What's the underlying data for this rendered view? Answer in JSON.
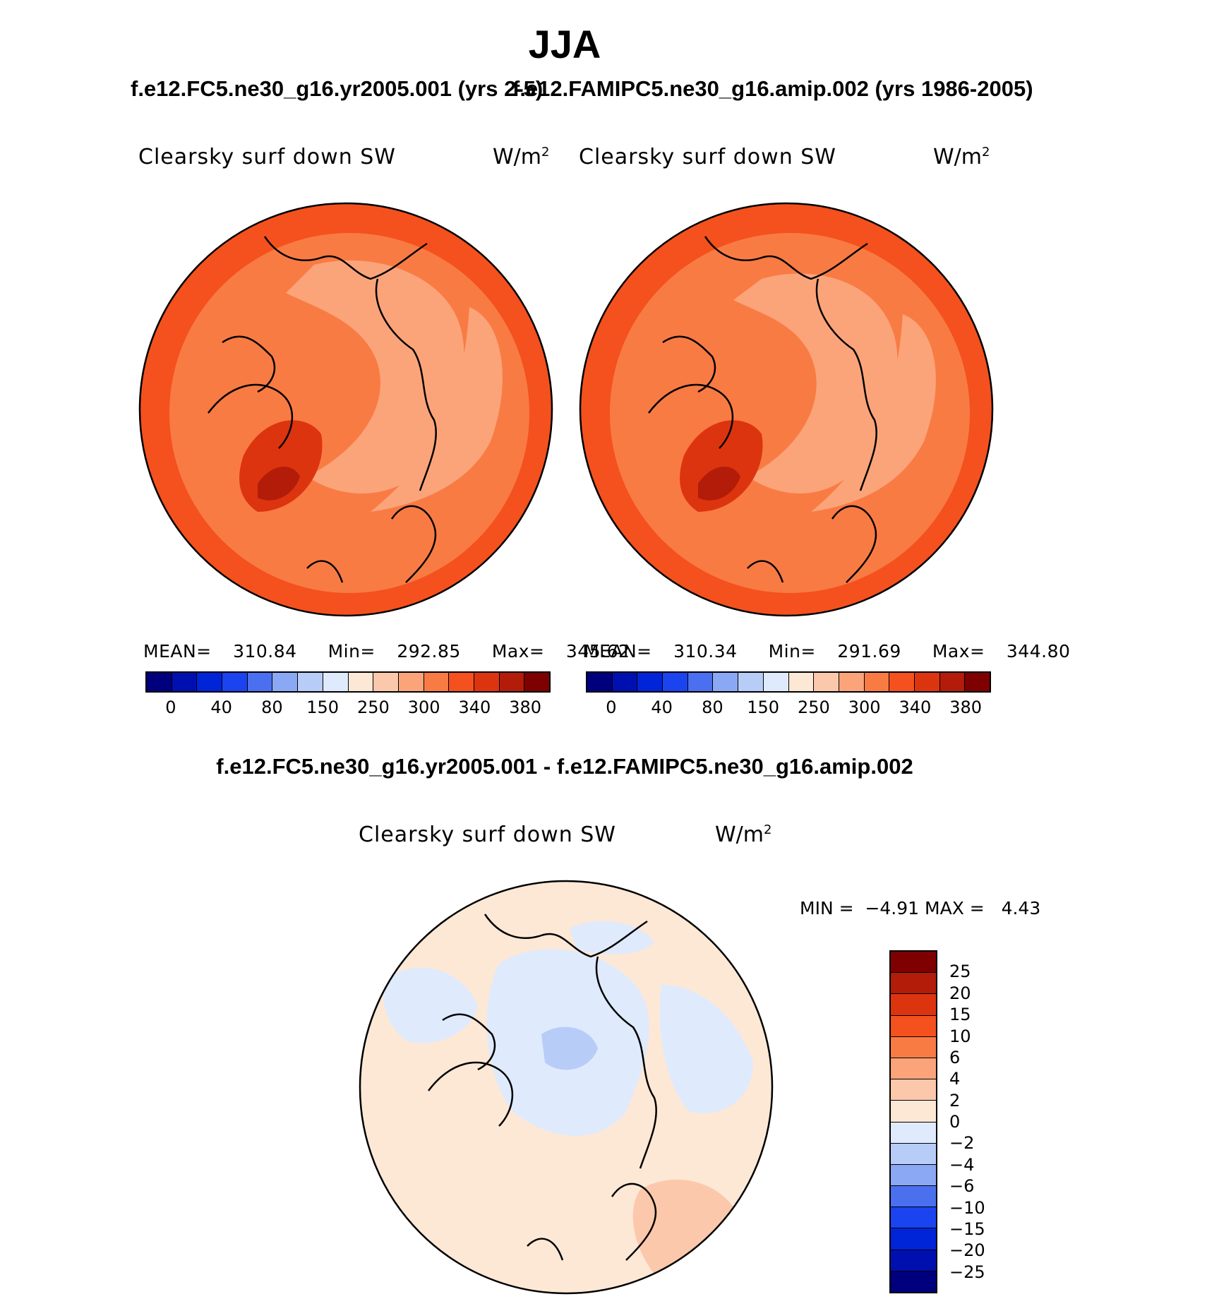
{
  "season": "JJA",
  "panels": [
    {
      "case_title": "f.e12.FC5.ne30_g16.yr2005.001 (yrs 2-5)",
      "variable": "Clearsky surf down SW",
      "units": "W/m",
      "units_exp": "2",
      "stats": {
        "mean_label": "MEAN=",
        "mean": "310.84",
        "min_label": "Min=",
        "min": "292.85",
        "max_label": "Max=",
        "max": "345.62"
      }
    },
    {
      "case_title": "f.e12.FAMIPC5.ne30_g16.amip.002 (yrs 1986-2005)",
      "variable": "Clearsky surf down SW",
      "units": "W/m",
      "units_exp": "2",
      "stats": {
        "mean_label": "MEAN=",
        "mean": "310.34",
        "min_label": "Min=",
        "min": "291.69",
        "max_label": "Max=",
        "max": "344.80"
      }
    }
  ],
  "colorbar_abs": {
    "colors": [
      "#00007f",
      "#0010b0",
      "#0024d8",
      "#1a44f0",
      "#4a70f0",
      "#8aa8f4",
      "#b8ccf8",
      "#dfeafc",
      "#fde8d6",
      "#fcc8ac",
      "#fba47a",
      "#f97b44",
      "#f4511e",
      "#dd3410",
      "#b31c08",
      "#7f0000"
    ],
    "labels": [
      "0",
      "40",
      "80",
      "150",
      "250",
      "300",
      "340",
      "380"
    ]
  },
  "difference": {
    "title": "f.e12.FC5.ne30_g16.yr2005.001 - f.e12.FAMIPC5.ne30_g16.amip.002",
    "variable": "Clearsky surf down SW",
    "units": "W/m",
    "units_exp": "2",
    "min_label": "MIN =",
    "min": "−4.91",
    "max_label": "MAX =",
    "max": "4.43"
  },
  "colorbar_diff": {
    "colors": [
      "#7f0000",
      "#b31c08",
      "#dd3410",
      "#f4511e",
      "#f97b44",
      "#fba47a",
      "#fcc8ac",
      "#fde8d6",
      "#dfeafc",
      "#b8ccf8",
      "#8aa8f4",
      "#4a70f0",
      "#1a44f0",
      "#0024d8",
      "#0010b0",
      "#00007f"
    ],
    "labels": [
      "25",
      "20",
      "15",
      "10",
      "6",
      "4",
      "2",
      "0",
      "−2",
      "−4",
      "−6",
      "−10",
      "−15",
      "−20",
      "−25"
    ]
  },
  "map_fill": {
    "abs_base": "#f97b44",
    "abs_high": "#f4511e",
    "abs_higher": "#dd3410",
    "abs_highest": "#b31c08",
    "abs_low": "#fba47a",
    "abs_lower": "#fcc8ac",
    "diff_base": "#fde8d6",
    "diff_neg": "#dfeafc",
    "diff_neg2": "#b8ccf8",
    "diff_pos": "#fcc8ac"
  }
}
